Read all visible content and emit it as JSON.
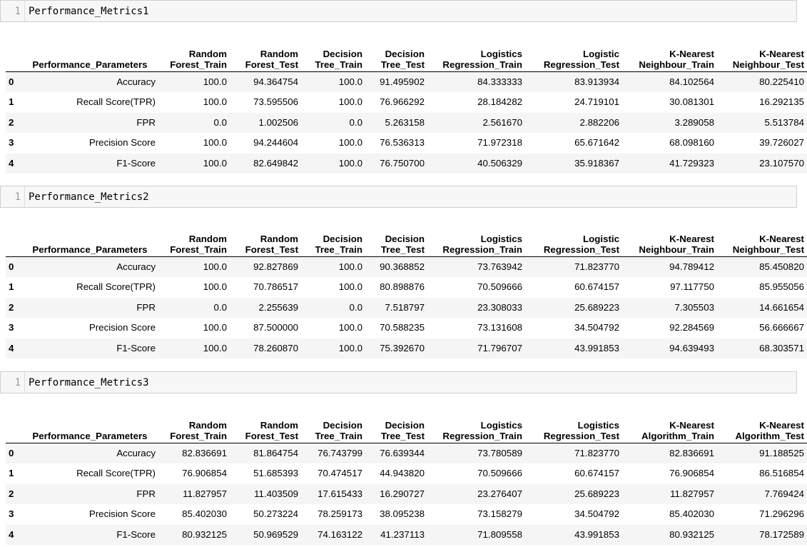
{
  "cells": [
    {
      "line_number": "1",
      "code": "Performance_Metrics1",
      "columns": [
        "",
        "Performance_Parameters",
        "Random\nForest_Train",
        "Random\nForest_Test",
        "Decision\nTree_Train",
        "Decision\nTree_Test",
        "Logistics\nRegression_Train",
        "Logistic\nRegression_Test",
        "K-Nearest\nNeighbour_Train",
        "K-Nearest\nNeighbour_Test"
      ],
      "rows": [
        [
          "0",
          "Accuracy",
          "100.0",
          "94.364754",
          "100.0",
          "91.495902",
          "84.333333",
          "83.913934",
          "84.102564",
          "80.225410"
        ],
        [
          "1",
          "Recall Score(TPR)",
          "100.0",
          "73.595506",
          "100.0",
          "76.966292",
          "28.184282",
          "24.719101",
          "30.081301",
          "16.292135"
        ],
        [
          "2",
          "FPR",
          "0.0",
          "1.002506",
          "0.0",
          "5.263158",
          "2.561670",
          "2.882206",
          "3.289058",
          "5.513784"
        ],
        [
          "3",
          "Precision Score",
          "100.0",
          "94.244604",
          "100.0",
          "76.536313",
          "71.972318",
          "65.671642",
          "68.098160",
          "39.726027"
        ],
        [
          "4",
          "F1-Score",
          "100.0",
          "82.649842",
          "100.0",
          "76.750700",
          "40.506329",
          "35.918367",
          "41.729323",
          "23.107570"
        ]
      ]
    },
    {
      "line_number": "1",
      "code": "Performance_Metrics2",
      "columns": [
        "",
        "Performance_Parameters",
        "Random\nForest_Train",
        "Random\nForest_Test",
        "Decision\nTree_Train",
        "Decision\nTree_Test",
        "Logistics\nRegression_Train",
        "Logistic\nRegression_Test",
        "K-Nearest\nNeighbour_Train",
        "K-Nearest\nNeighbour_Test"
      ],
      "rows": [
        [
          "0",
          "Accuracy",
          "100.0",
          "92.827869",
          "100.0",
          "90.368852",
          "73.763942",
          "71.823770",
          "94.789412",
          "85.450820"
        ],
        [
          "1",
          "Recall Score(TPR)",
          "100.0",
          "70.786517",
          "100.0",
          "80.898876",
          "70.509666",
          "60.674157",
          "97.117750",
          "85.955056"
        ],
        [
          "2",
          "FPR",
          "0.0",
          "2.255639",
          "0.0",
          "7.518797",
          "23.308033",
          "25.689223",
          "7.305503",
          "14.661654"
        ],
        [
          "3",
          "Precision Score",
          "100.0",
          "87.500000",
          "100.0",
          "70.588235",
          "73.131608",
          "34.504792",
          "92.284569",
          "56.666667"
        ],
        [
          "4",
          "F1-Score",
          "100.0",
          "78.260870",
          "100.0",
          "75.392670",
          "71.796707",
          "43.991853",
          "94.639493",
          "68.303571"
        ]
      ]
    },
    {
      "line_number": "1",
      "code": "Performance_Metrics3",
      "columns": [
        "",
        "Performance_Parameters",
        "Random\nForest_Train",
        "Random\nForest_Test",
        "Decision\nTree_Train",
        "Decision\nTree_Test",
        "Logistics\nRegression_Train",
        "Logistics\nRegression_Test",
        "K-Nearest\nAlgorithm_Train",
        "K-Nearest\nAlgorithm_Test"
      ],
      "rows": [
        [
          "0",
          "Accuracy",
          "82.836691",
          "81.864754",
          "76.743799",
          "76.639344",
          "73.780589",
          "71.823770",
          "82.836691",
          "91.188525"
        ],
        [
          "1",
          "Recall Score(TPR)",
          "76.906854",
          "51.685393",
          "70.474517",
          "44.943820",
          "70.509666",
          "60.674157",
          "76.906854",
          "86.516854"
        ],
        [
          "2",
          "FPR",
          "11.827957",
          "11.403509",
          "17.615433",
          "16.290727",
          "23.276407",
          "25.689223",
          "11.827957",
          "7.769424"
        ],
        [
          "3",
          "Precision Score",
          "85.402030",
          "50.273224",
          "78.259173",
          "38.095238",
          "73.158279",
          "34.504792",
          "85.402030",
          "71.296296"
        ],
        [
          "4",
          "F1-Score",
          "80.932125",
          "50.969529",
          "74.163122",
          "41.237113",
          "71.809558",
          "43.991853",
          "80.932125",
          "78.172589"
        ]
      ]
    }
  ]
}
